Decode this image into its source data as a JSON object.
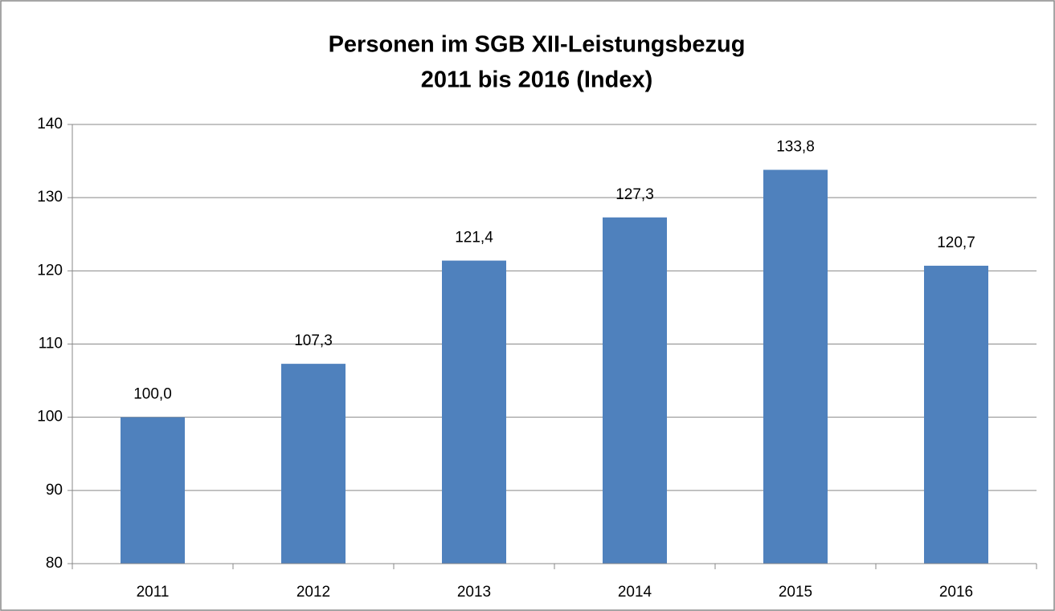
{
  "chart_data": {
    "type": "bar",
    "title": [
      "Personen im SGB XII-Leistungsbezug",
      "2011 bis 2016 (Index)"
    ],
    "categories": [
      "2011",
      "2012",
      "2013",
      "2014",
      "2015",
      "2016"
    ],
    "values": [
      100.0,
      107.3,
      121.4,
      127.3,
      133.8,
      120.7
    ],
    "value_labels": [
      "100,0",
      "107,3",
      "121,4",
      "127,3",
      "133,8",
      "120,7"
    ],
    "color": "#4f81bd",
    "ylim": [
      80,
      140
    ],
    "yticks": [
      80,
      90,
      100,
      110,
      120,
      130,
      140
    ],
    "grid": true
  }
}
